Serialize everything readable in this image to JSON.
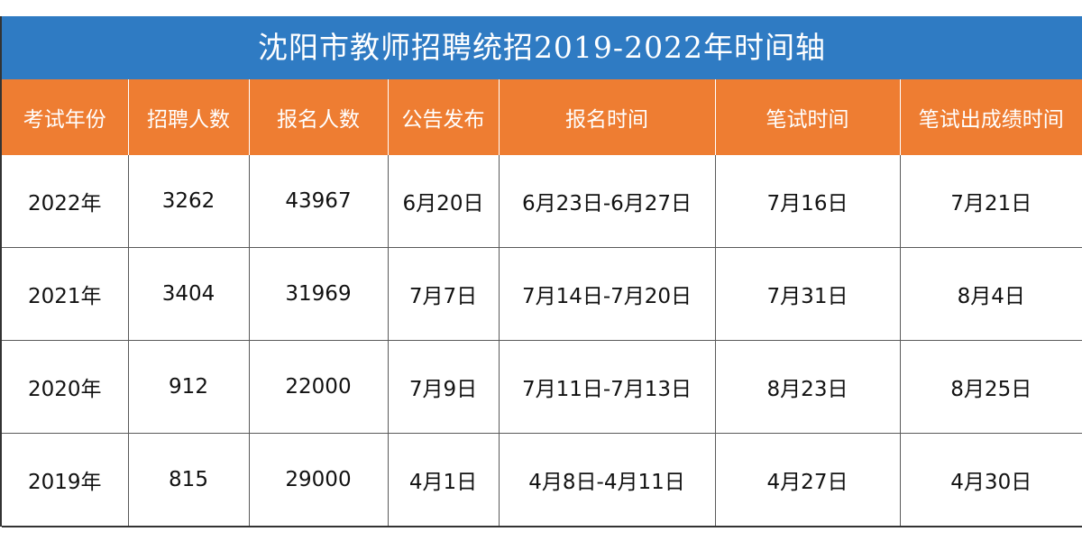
{
  "title": "沈阳市教师招聘统招2019-2022年时间轴",
  "colors": {
    "title_bg": "#2f7bc3",
    "header_bg": "#ee7d32",
    "text": "#111111"
  },
  "table": {
    "headers": [
      "考试年份",
      "招聘人数",
      "报名人数",
      "公告发布",
      "报名时间",
      "笔试时间",
      "笔试出成绩时间"
    ],
    "rows": [
      [
        "2022年",
        "3262",
        "43967",
        "6月20日",
        "6月23日-6月27日",
        "7月16日",
        "7月21日"
      ],
      [
        "2021年",
        "3404",
        "31969",
        "7月7日",
        "7月14日-7月20日",
        "7月31日",
        "8月4日"
      ],
      [
        "2020年",
        "912",
        "22000",
        "7月9日",
        "7月11日-7月13日",
        "8月23日",
        "8月25日"
      ],
      [
        "2019年",
        "815",
        "29000",
        "4月1日",
        "4月8日-4月11日",
        "4月27日",
        "4月30日"
      ]
    ]
  }
}
